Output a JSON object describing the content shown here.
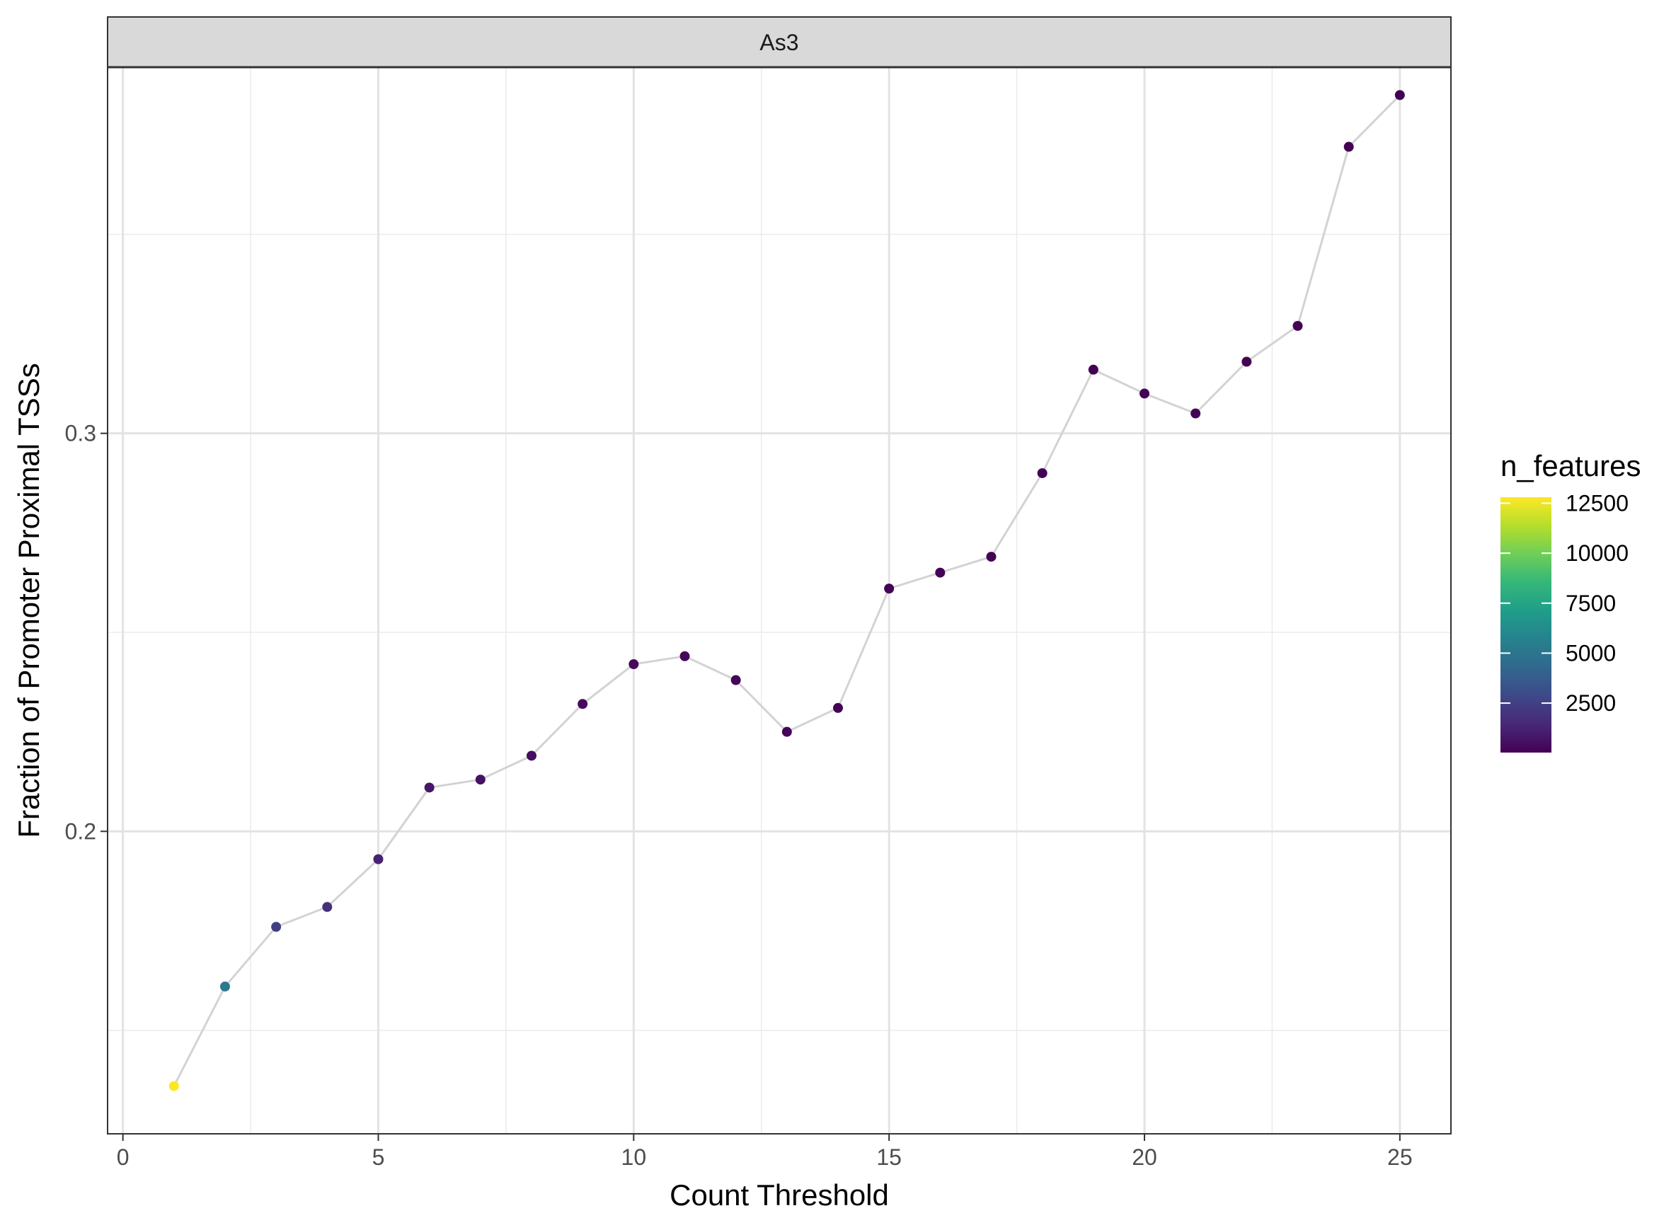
{
  "chart_data": {
    "type": "scatter",
    "facet_label": "As3",
    "xlabel": "Count Threshold",
    "ylabel": "Fraction of Promoter Proximal TSSs",
    "xlim": [
      -0.3,
      26.0
    ],
    "ylim": [
      0.124,
      0.392
    ],
    "x_ticks": [
      0,
      5,
      10,
      15,
      20,
      25
    ],
    "x_tick_labels": [
      "0",
      "5",
      "10",
      "15",
      "20",
      "25"
    ],
    "x_minor_ticks": [
      2.5,
      7.5,
      12.5,
      17.5,
      22.5
    ],
    "y_ticks": [
      0.2,
      0.3
    ],
    "y_tick_labels": [
      "0.2",
      "0.3"
    ],
    "y_minor_ticks": [
      0.15,
      0.25,
      0.35
    ],
    "grid": true,
    "line_color": "#d3d3d3",
    "series": [
      {
        "x": [
          1,
          2,
          3,
          4,
          5,
          6,
          7,
          8,
          9,
          10,
          11,
          12,
          13,
          14,
          15,
          16,
          17,
          18,
          19,
          20,
          21,
          22,
          23,
          24,
          25
        ],
        "y": [
          0.136,
          0.161,
          0.176,
          0.181,
          0.193,
          0.211,
          0.213,
          0.219,
          0.232,
          0.242,
          0.244,
          0.238,
          0.225,
          0.231,
          0.261,
          0.265,
          0.269,
          0.29,
          0.316,
          0.31,
          0.305,
          0.318,
          0.327,
          0.372,
          0.385
        ],
        "n_features": [
          12800,
          5200,
          2400,
          1800,
          1200,
          800,
          600,
          500,
          400,
          300,
          250,
          200,
          150,
          120,
          100,
          90,
          80,
          70,
          60,
          50,
          45,
          40,
          35,
          30,
          25
        ]
      }
    ],
    "legend": {
      "title": "n_features",
      "position": "right",
      "range": [
        25,
        12800
      ],
      "breaks": [
        2500,
        5000,
        7500,
        10000,
        12500
      ],
      "break_labels": [
        "2500",
        "5000",
        "7500",
        "10000",
        "12500"
      ],
      "colors": [
        "#440154",
        "#482878",
        "#3e4989",
        "#31688e",
        "#26828e",
        "#1f9e89",
        "#35b779",
        "#6ece58",
        "#b5de2b",
        "#fde725"
      ]
    }
  }
}
